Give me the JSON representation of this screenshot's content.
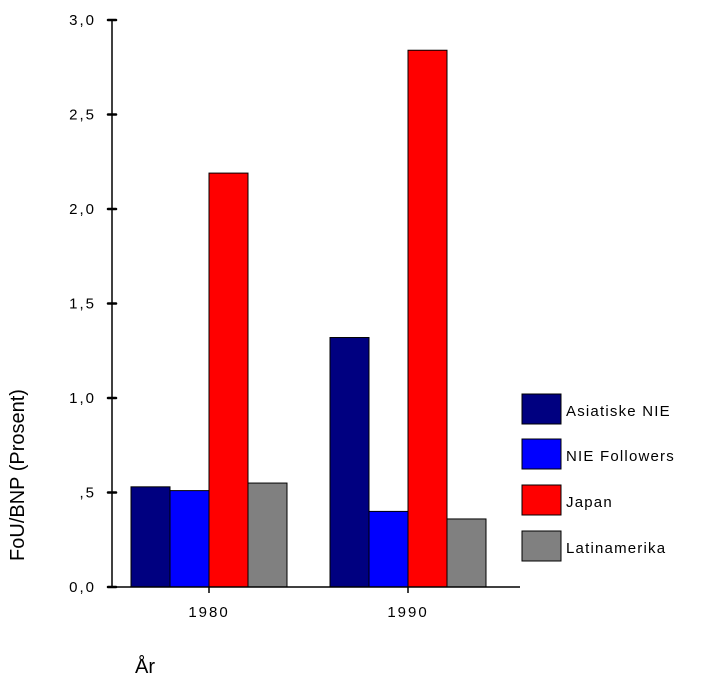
{
  "chart_data": {
    "type": "bar",
    "categories": [
      "1980",
      "1990"
    ],
    "series": [
      {
        "name": "Asiatiske NIE",
        "color": "#000080",
        "values": [
          0.53,
          1.32
        ]
      },
      {
        "name": "NIE Followers",
        "color": "#0000ff",
        "values": [
          0.51,
          0.4
        ]
      },
      {
        "name": "Japan",
        "color": "#ff0000",
        "values": [
          2.19,
          2.84
        ]
      },
      {
        "name": "Latinamerika",
        "color": "#808080",
        "values": [
          0.55,
          0.36
        ]
      }
    ],
    "ylabel": "FoU/BNP (Prosent)",
    "xlabel": "År",
    "ylim": [
      0,
      3.0
    ],
    "yticks": [
      {
        "value": 0.0,
        "label": "0,0"
      },
      {
        "value": 0.5,
        "label": ",5"
      },
      {
        "value": 1.0,
        "label": "1,0"
      },
      {
        "value": 1.5,
        "label": "1,5"
      },
      {
        "value": 2.0,
        "label": "2,0"
      },
      {
        "value": 2.5,
        "label": "2,5"
      },
      {
        "value": 3.0,
        "label": "3,0"
      }
    ],
    "grid": false,
    "legend_position": "right"
  }
}
